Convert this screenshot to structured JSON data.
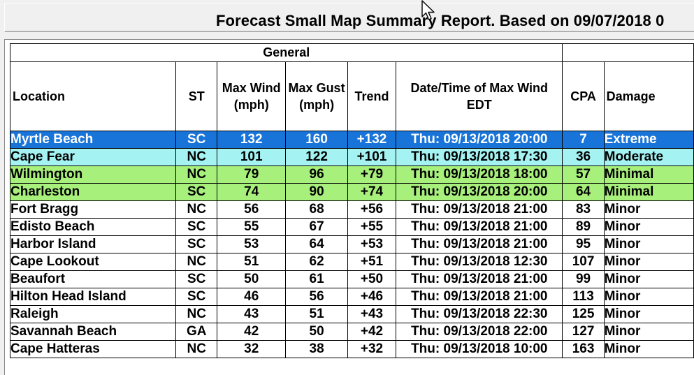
{
  "report": {
    "title": "Forecast Small Map Summary Report. Based on 09/07/2018 0",
    "group_header": "General",
    "columns": {
      "location": "Location",
      "st": "ST",
      "max_wind": "Max Wind (mph)",
      "max_gust": "Max Gust (mph)",
      "trend": "Trend",
      "datetime": "Date/Time of Max Wind EDT",
      "cpa": "CPA",
      "damage": "Damage"
    },
    "rows": [
      {
        "location": "Myrtle Beach",
        "st": "SC",
        "max_wind": "132",
        "max_gust": "160",
        "trend": "+132",
        "datetime": "Thu: 09/13/2018 20:00",
        "cpa": "7",
        "damage": "Extreme"
      },
      {
        "location": "Cape Fear",
        "st": "NC",
        "max_wind": "101",
        "max_gust": "122",
        "trend": "+101",
        "datetime": "Thu: 09/13/2018 17:30",
        "cpa": "36",
        "damage": "Moderate"
      },
      {
        "location": "Wilmington",
        "st": "NC",
        "max_wind": "79",
        "max_gust": "96",
        "trend": "+79",
        "datetime": "Thu: 09/13/2018 18:00",
        "cpa": "57",
        "damage": "Minimal"
      },
      {
        "location": "Charleston",
        "st": "SC",
        "max_wind": "74",
        "max_gust": "90",
        "trend": "+74",
        "datetime": "Thu: 09/13/2018 20:00",
        "cpa": "64",
        "damage": "Minimal"
      },
      {
        "location": "Fort Bragg",
        "st": "NC",
        "max_wind": "56",
        "max_gust": "68",
        "trend": "+56",
        "datetime": "Thu: 09/13/2018 21:00",
        "cpa": "83",
        "damage": "Minor"
      },
      {
        "location": "Edisto Beach",
        "st": "SC",
        "max_wind": "55",
        "max_gust": "67",
        "trend": "+55",
        "datetime": "Thu: 09/13/2018 21:00",
        "cpa": "89",
        "damage": "Minor"
      },
      {
        "location": "Harbor Island",
        "st": "SC",
        "max_wind": "53",
        "max_gust": "64",
        "trend": "+53",
        "datetime": "Thu: 09/13/2018 21:00",
        "cpa": "95",
        "damage": "Minor"
      },
      {
        "location": "Cape Lookout",
        "st": "NC",
        "max_wind": "51",
        "max_gust": "62",
        "trend": "+51",
        "datetime": "Thu: 09/13/2018 12:30",
        "cpa": "107",
        "damage": "Minor"
      },
      {
        "location": "Beaufort",
        "st": "SC",
        "max_wind": "50",
        "max_gust": "61",
        "trend": "+50",
        "datetime": "Thu: 09/13/2018 21:00",
        "cpa": "99",
        "damage": "Minor"
      },
      {
        "location": "Hilton Head Island",
        "st": "SC",
        "max_wind": "46",
        "max_gust": "56",
        "trend": "+46",
        "datetime": "Thu: 09/13/2018 21:00",
        "cpa": "113",
        "damage": "Minor"
      },
      {
        "location": "Raleigh",
        "st": "NC",
        "max_wind": "43",
        "max_gust": "51",
        "trend": "+43",
        "datetime": "Thu: 09/13/2018 22:30",
        "cpa": "125",
        "damage": "Minor"
      },
      {
        "location": "Savannah Beach",
        "st": "GA",
        "max_wind": "42",
        "max_gust": "50",
        "trend": "+42",
        "datetime": "Thu: 09/13/2018 22:00",
        "cpa": "127",
        "damage": "Minor"
      },
      {
        "location": "Cape Hatteras",
        "st": "NC",
        "max_wind": "32",
        "max_gust": "38",
        "trend": "+32",
        "datetime": "Thu: 09/13/2018 10:00",
        "cpa": "163",
        "damage": "Minor"
      }
    ]
  },
  "colors": {
    "selected_row": "#1874d8",
    "extreme_moderate_row": "#a4f2f2",
    "minimal_row": "#a8f07c"
  },
  "icons": {
    "cursor": "mouse-pointer-icon"
  }
}
